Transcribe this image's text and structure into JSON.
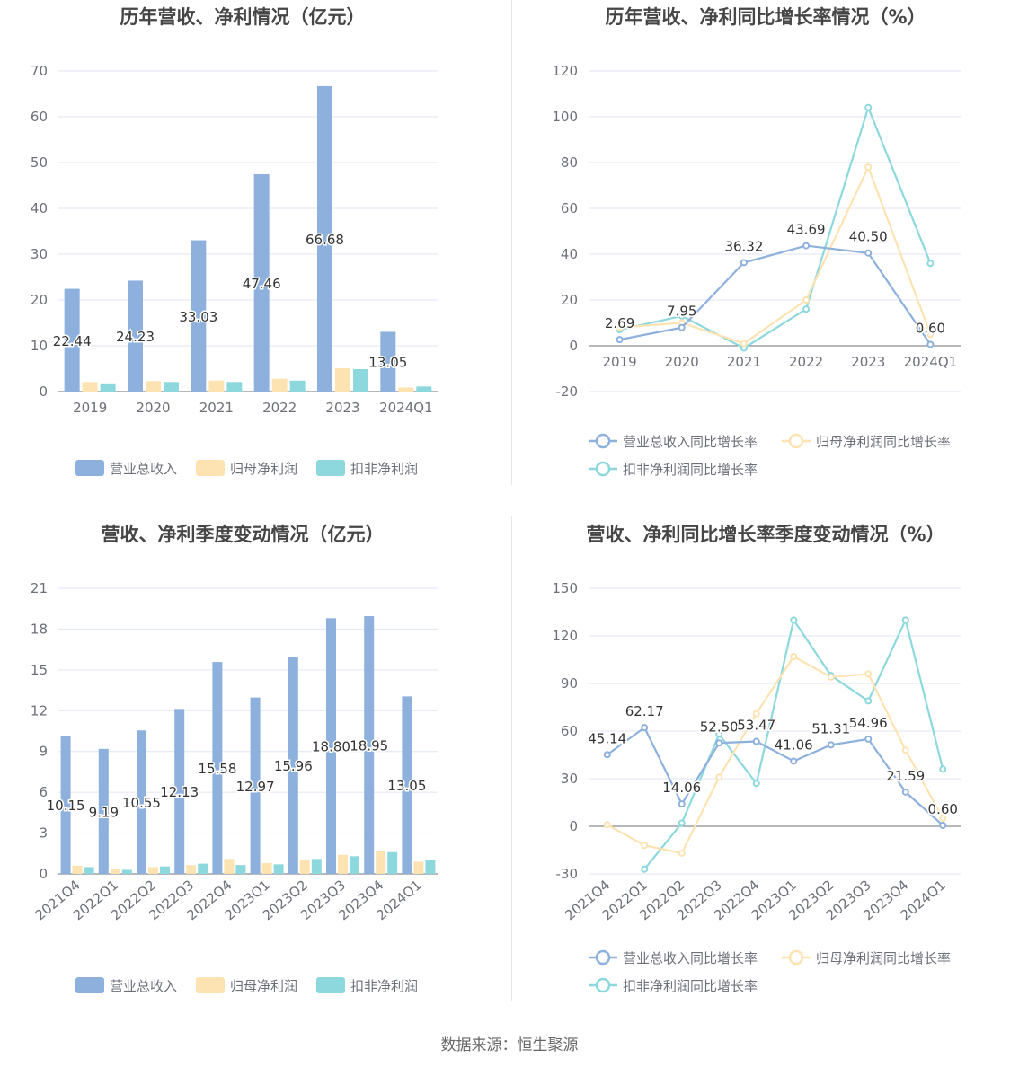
{
  "chart_data": [
    {
      "type": "bar",
      "title": "历年营收、净利情况（亿元）",
      "categories": [
        "2019",
        "2020",
        "2021",
        "2022",
        "2023",
        "2024Q1"
      ],
      "ylim": [
        0,
        70
      ],
      "yticks": [
        "0",
        "10",
        "20",
        "30",
        "40",
        "50",
        "60",
        "70"
      ],
      "series": [
        {
          "name": "营业总收入",
          "values": [
            22.44,
            24.23,
            33.03,
            47.46,
            66.68,
            13.05
          ]
        },
        {
          "name": "归母净利润",
          "values": [
            2.1,
            2.3,
            2.4,
            2.8,
            5.1,
            0.9
          ]
        },
        {
          "name": "扣非净利润",
          "values": [
            1.8,
            2.1,
            2.1,
            2.4,
            4.9,
            1.1
          ]
        }
      ],
      "labels": [
        "22.44",
        "24.23",
        "33.03",
        "47.46",
        "66.68",
        "13.05"
      ],
      "grid": true,
      "legend": "bottom"
    },
    {
      "type": "line",
      "title": "历年营收、净利同比增长率情况（%）",
      "categories": [
        "2019",
        "2020",
        "2021",
        "2022",
        "2023",
        "2024Q1"
      ],
      "ylim": [
        -20,
        120
      ],
      "yticks": [
        "-20",
        "0",
        "20",
        "40",
        "60",
        "80",
        "100",
        "120"
      ],
      "series": [
        {
          "name": "营业总收入同比增长率",
          "values": [
            2.69,
            7.95,
            36.32,
            43.69,
            40.5,
            0.6
          ]
        },
        {
          "name": "归母净利润同比增长率",
          "values": [
            8,
            10,
            1,
            20,
            78,
            5
          ]
        },
        {
          "name": "扣非净利润同比增长率",
          "values": [
            7,
            13,
            -1,
            16,
            104,
            36
          ]
        }
      ],
      "labels": [
        "2.69",
        "7.95",
        "36.32",
        "43.69",
        "40.50",
        "0.60"
      ],
      "grid": true,
      "legend": "bottom"
    },
    {
      "type": "bar",
      "title": "营收、净利季度变动情况（亿元）",
      "categories": [
        "2021Q4",
        "2022Q1",
        "2022Q2",
        "2022Q3",
        "2022Q4",
        "2023Q1",
        "2023Q2",
        "2023Q3",
        "2023Q4",
        "2024Q1"
      ],
      "ylim": [
        0,
        21
      ],
      "yticks": [
        "0",
        "3",
        "6",
        "9",
        "12",
        "15",
        "18",
        "21"
      ],
      "series": [
        {
          "name": "营业总收入",
          "values": [
            10.15,
            9.19,
            10.55,
            12.13,
            15.58,
            12.97,
            15.96,
            18.8,
            18.95,
            13.05
          ]
        },
        {
          "name": "归母净利润",
          "values": [
            0.6,
            0.35,
            0.5,
            0.65,
            1.1,
            0.8,
            1.0,
            1.4,
            1.7,
            0.9
          ]
        },
        {
          "name": "扣非净利润",
          "values": [
            0.5,
            0.3,
            0.55,
            0.75,
            0.65,
            0.7,
            1.1,
            1.3,
            1.6,
            1.0
          ]
        }
      ],
      "labels": [
        "10.15",
        "9.19",
        "10.55",
        "12.13",
        "15.58",
        "12.97",
        "15.96",
        "18.80",
        "18.95",
        "13.05"
      ],
      "grid": true,
      "legend": "bottom"
    },
    {
      "type": "line",
      "title": "营收、净利同比增长率季度变动情况（%）",
      "categories": [
        "2021Q4",
        "2022Q1",
        "2022Q2",
        "2022Q3",
        "2022Q4",
        "2023Q1",
        "2023Q2",
        "2023Q3",
        "2023Q4",
        "2024Q1"
      ],
      "ylim": [
        -30,
        150
      ],
      "yticks": [
        "-30",
        "0",
        "30",
        "60",
        "90",
        "120",
        "150"
      ],
      "series": [
        {
          "name": "营业总收入同比增长率",
          "values": [
            45.14,
            62.17,
            14.06,
            52.5,
            53.47,
            41.06,
            51.31,
            54.96,
            21.59,
            0.6
          ]
        },
        {
          "name": "归母净利润同比增长率",
          "values": [
            1,
            -12,
            -17,
            31,
            71,
            107,
            94,
            96,
            48,
            5
          ]
        },
        {
          "name": "扣非净利润同比增长率",
          "values": [
            null,
            -27,
            2,
            58,
            27,
            130,
            95,
            79,
            130,
            36
          ]
        }
      ],
      "labels": [
        "45.14",
        "62.17",
        "14.06",
        "52.50",
        "53.47",
        "41.06",
        "51.31",
        "54.96",
        "21.59",
        "0.60"
      ],
      "grid": true,
      "legend": "bottom"
    }
  ],
  "colors": {
    "revenue": "#8eb0dc",
    "net_profit": "#fde3b2",
    "deducted_profit": "#8dd8dc",
    "grid": "#e0e6f1",
    "axis_text": "#6e7079",
    "title": "#464646",
    "label": "#333333"
  },
  "footer": {
    "source": "数据来源：恒生聚源"
  }
}
